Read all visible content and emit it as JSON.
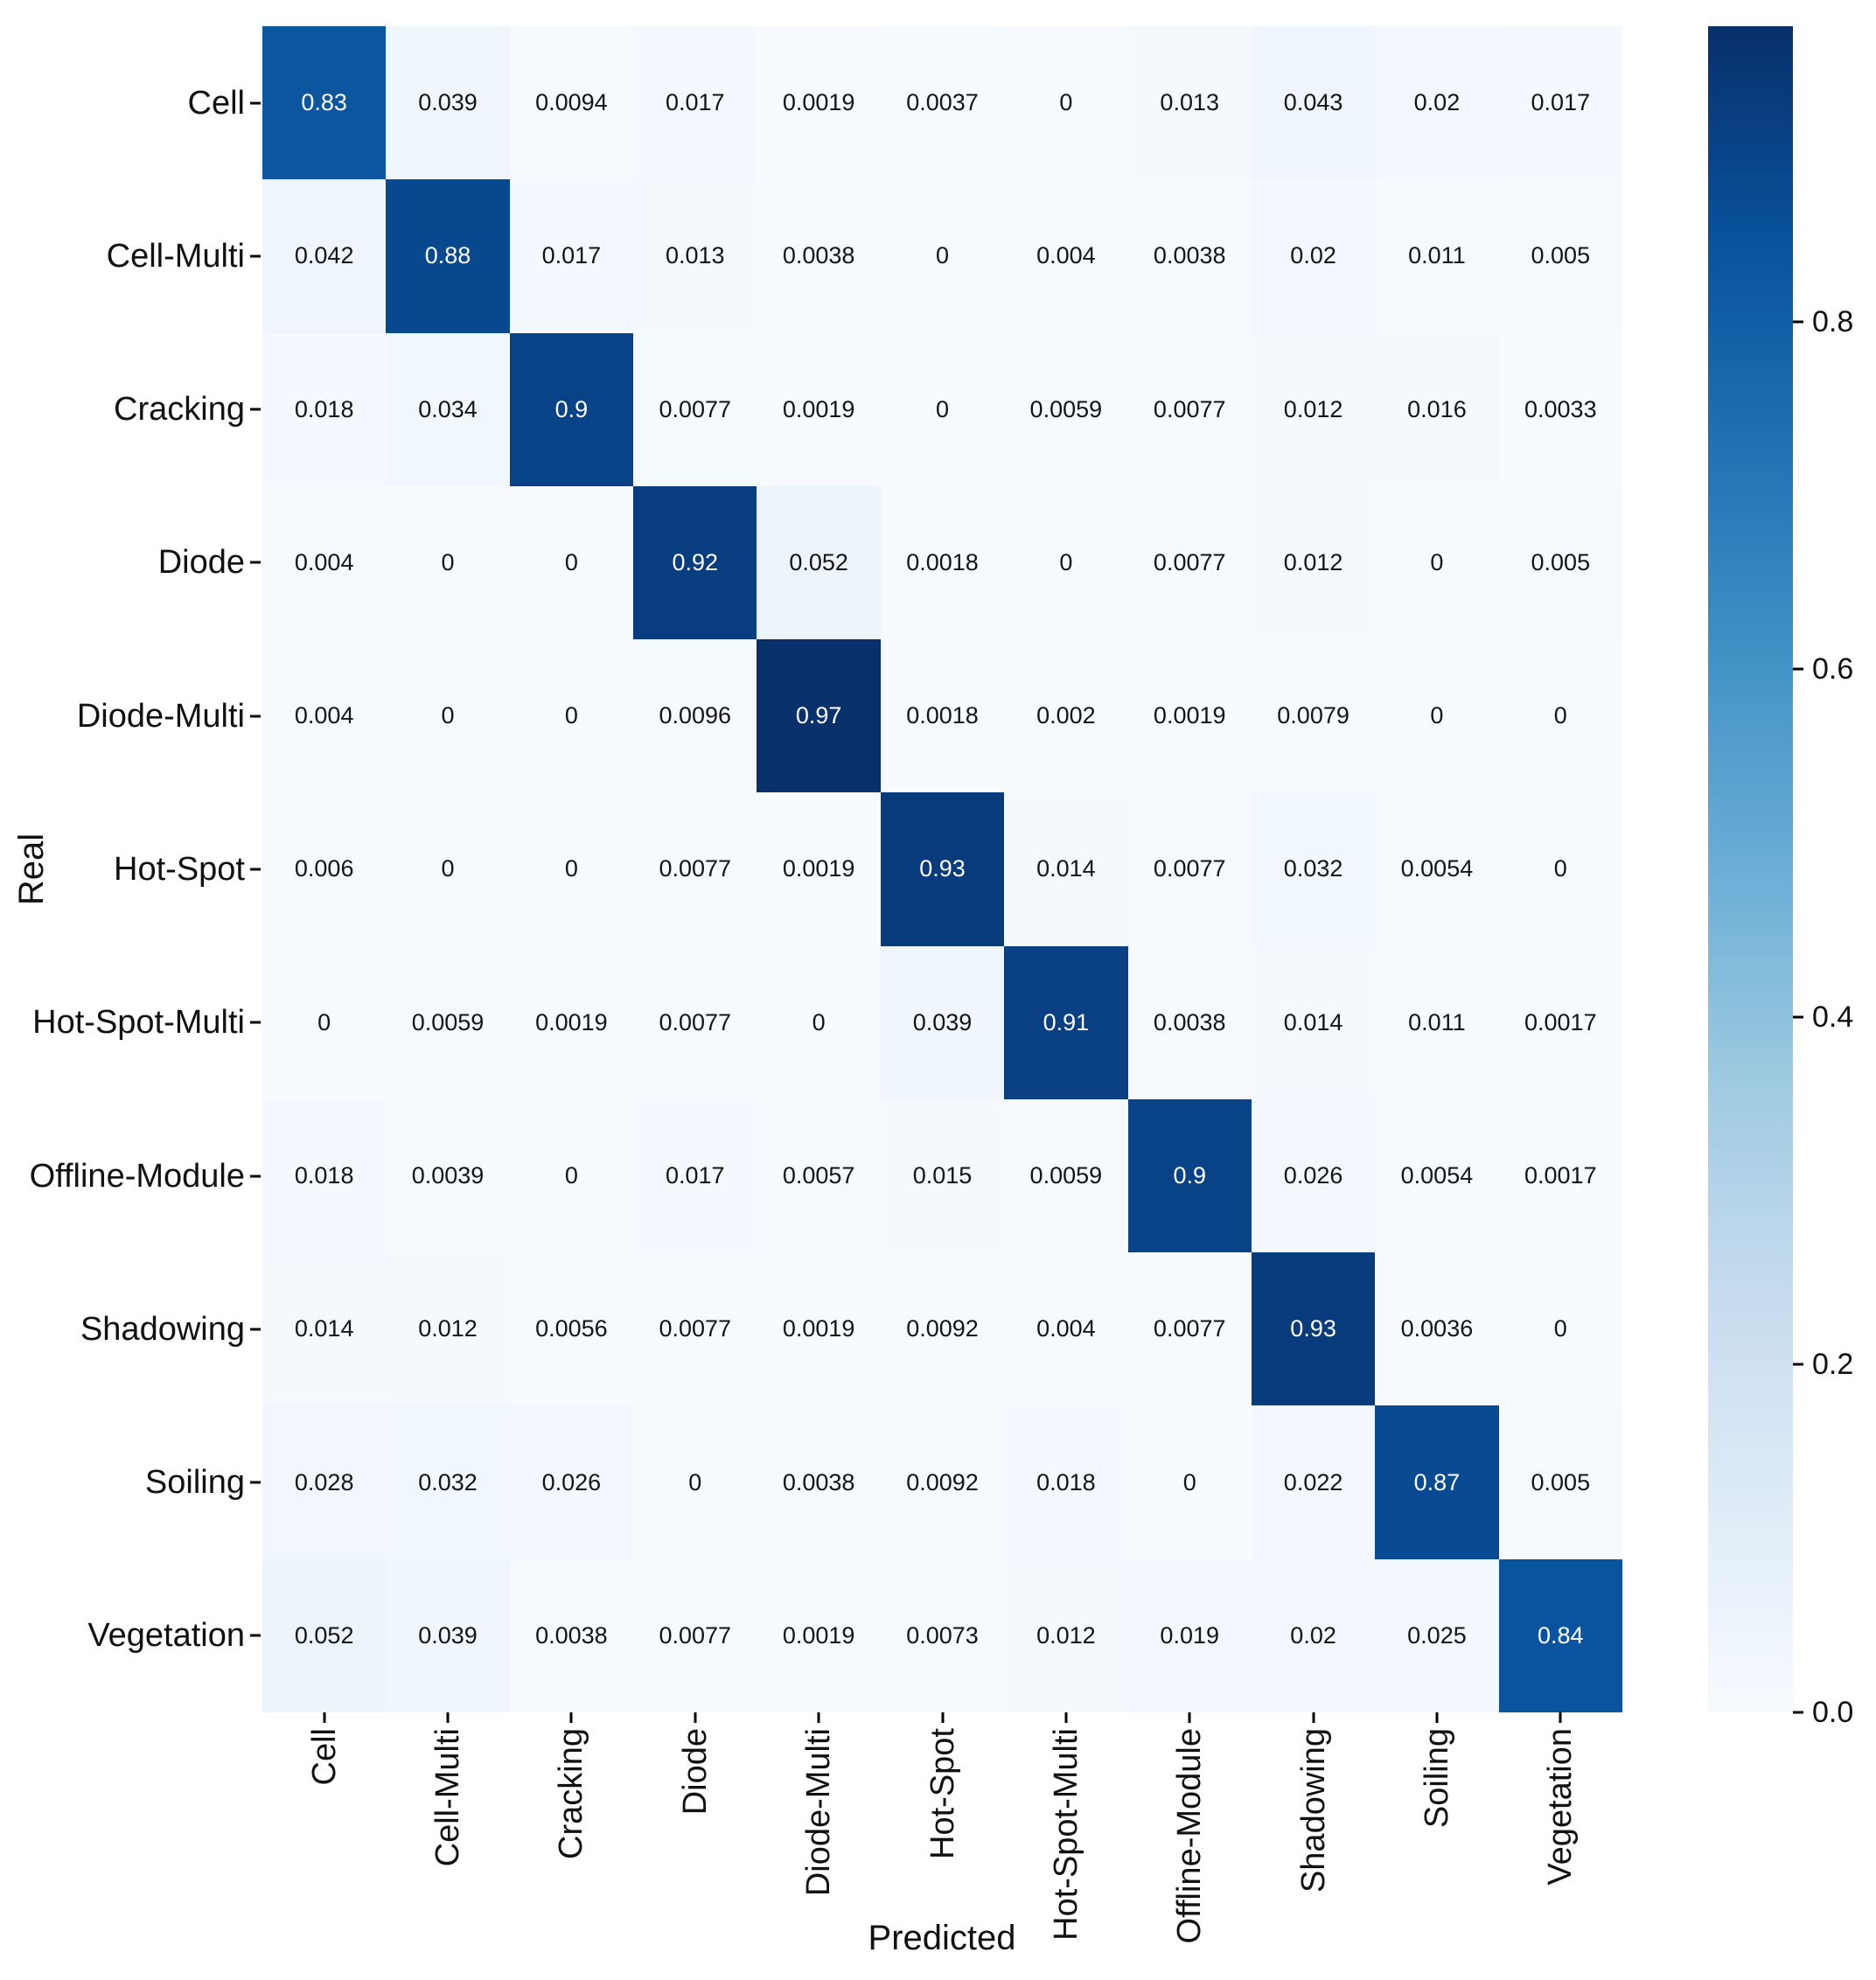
{
  "figure": {
    "background": "#ffffff"
  },
  "chart_data": {
    "type": "heatmap",
    "title": "",
    "xlabel": "Predicted",
    "ylabel": "Real",
    "categories": [
      "Cell",
      "Cell-Multi",
      "Cracking",
      "Diode",
      "Diode-Multi",
      "Hot-Spot",
      "Hot-Spot-Multi",
      "Offline-Module",
      "Shadowing",
      "Soiling",
      "Vegetation"
    ],
    "matrix": [
      [
        "0.83",
        "0.039",
        "0.0094",
        "0.017",
        "0.0019",
        "0.0037",
        "0",
        "0.013",
        "0.043",
        "0.02",
        "0.017"
      ],
      [
        "0.042",
        "0.88",
        "0.017",
        "0.013",
        "0.0038",
        "0",
        "0.004",
        "0.0038",
        "0.02",
        "0.011",
        "0.005"
      ],
      [
        "0.018",
        "0.034",
        "0.9",
        "0.0077",
        "0.0019",
        "0",
        "0.0059",
        "0.0077",
        "0.012",
        "0.016",
        "0.0033"
      ],
      [
        "0.004",
        "0",
        "0",
        "0.92",
        "0.052",
        "0.0018",
        "0",
        "0.0077",
        "0.012",
        "0",
        "0.005"
      ],
      [
        "0.004",
        "0",
        "0",
        "0.0096",
        "0.97",
        "0.0018",
        "0.002",
        "0.0019",
        "0.0079",
        "0",
        "0"
      ],
      [
        "0.006",
        "0",
        "0",
        "0.0077",
        "0.0019",
        "0.93",
        "0.014",
        "0.0077",
        "0.032",
        "0.0054",
        "0"
      ],
      [
        "0",
        "0.0059",
        "0.0019",
        "0.0077",
        "0",
        "0.039",
        "0.91",
        "0.0038",
        "0.014",
        "0.011",
        "0.0017"
      ],
      [
        "0.018",
        "0.0039",
        "0",
        "0.017",
        "0.0057",
        "0.015",
        "0.0059",
        "0.9",
        "0.026",
        "0.0054",
        "0.0017"
      ],
      [
        "0.014",
        "0.012",
        "0.0056",
        "0.0077",
        "0.0019",
        "0.0092",
        "0.004",
        "0.0077",
        "0.93",
        "0.0036",
        "0"
      ],
      [
        "0.028",
        "0.032",
        "0.026",
        "0",
        "0.0038",
        "0.0092",
        "0.018",
        "0",
        "0.022",
        "0.87",
        "0.005"
      ],
      [
        "0.052",
        "0.039",
        "0.0038",
        "0.0077",
        "0.0019",
        "0.0073",
        "0.012",
        "0.019",
        "0.02",
        "0.025",
        "0.84"
      ]
    ],
    "vmin": 0,
    "vmax": 0.97,
    "colormap": "Blues",
    "legend_position": "right-colorbar",
    "grid": false,
    "colorbar_tick_labels": [
      "0.8",
      "0.6",
      "0.4",
      "0.2",
      "0.0"
    ],
    "colorbar_tick_values": [
      0.8,
      0.6,
      0.4,
      0.2,
      0.0
    ]
  },
  "colors": {
    "cmap_stops_low_to_high": [
      "#f7fbff",
      "#deebf7",
      "#c6dbef",
      "#9ecae1",
      "#6baed6",
      "#4292c6",
      "#2171b5",
      "#08519c",
      "#08306b"
    ],
    "annotation_dark_text": "#141414",
    "annotation_light_text": "#ffffff",
    "tick_color": "#000000"
  }
}
